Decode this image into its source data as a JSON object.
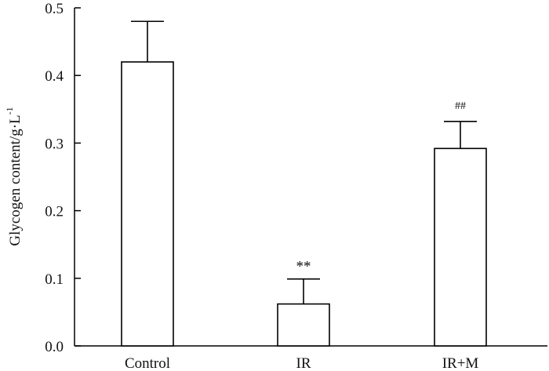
{
  "chart_data": {
    "type": "bar",
    "title": "",
    "xlabel": "",
    "ylabel": "Glycogen content/g·L",
    "ylabel_superscript": "-1",
    "categories": [
      "Control",
      "IR",
      "IR+M"
    ],
    "values": [
      0.42,
      0.062,
      0.292
    ],
    "errors": [
      0.06,
      0.037,
      0.04
    ],
    "annotations": [
      "",
      "**",
      "##"
    ],
    "ylim": [
      0,
      0.5
    ],
    "yticks": [
      0.0,
      0.1,
      0.2,
      0.3,
      0.4,
      0.5
    ],
    "ytick_labels": [
      "0.0",
      "0.1",
      "0.2",
      "0.3",
      "0.4",
      "0.5"
    ],
    "grid": false,
    "legend": "none",
    "colors": {
      "bar_fill": "#ffffff",
      "bar_stroke": "#000000",
      "axis": "#000000"
    }
  }
}
